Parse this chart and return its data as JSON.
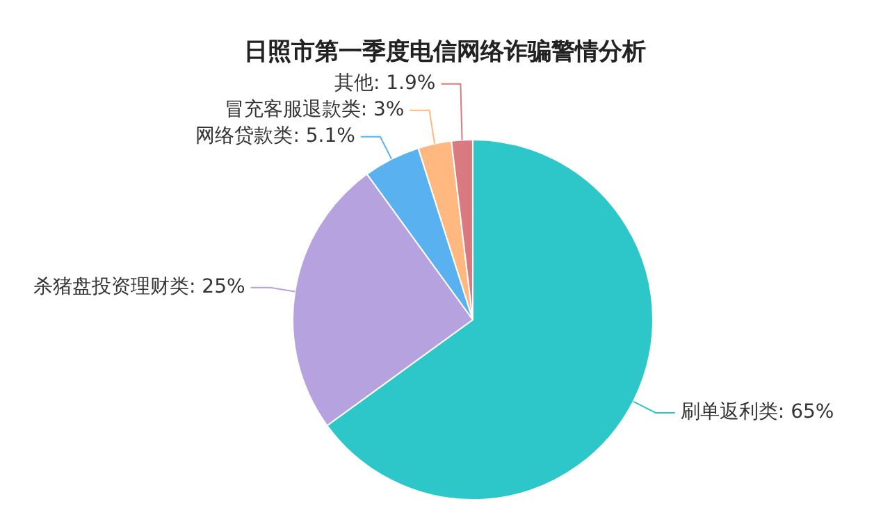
{
  "chart_data": {
    "type": "pie",
    "title": "日照市第一季度电信网络诈骗警情分析",
    "categories": [
      "刷单返利类",
      "杀猪盘投资理财类",
      "网络贷款类",
      "冒充客服退款类",
      "其他"
    ],
    "values": [
      65,
      25,
      5.1,
      3,
      1.9
    ],
    "value_labels": [
      "65%",
      "25%",
      "5.1%",
      "3%",
      "1.9%"
    ],
    "colors": [
      "#2ec7c9",
      "#b6a2de",
      "#5ab1ef",
      "#ffb980",
      "#d87a80"
    ],
    "legend": false
  }
}
